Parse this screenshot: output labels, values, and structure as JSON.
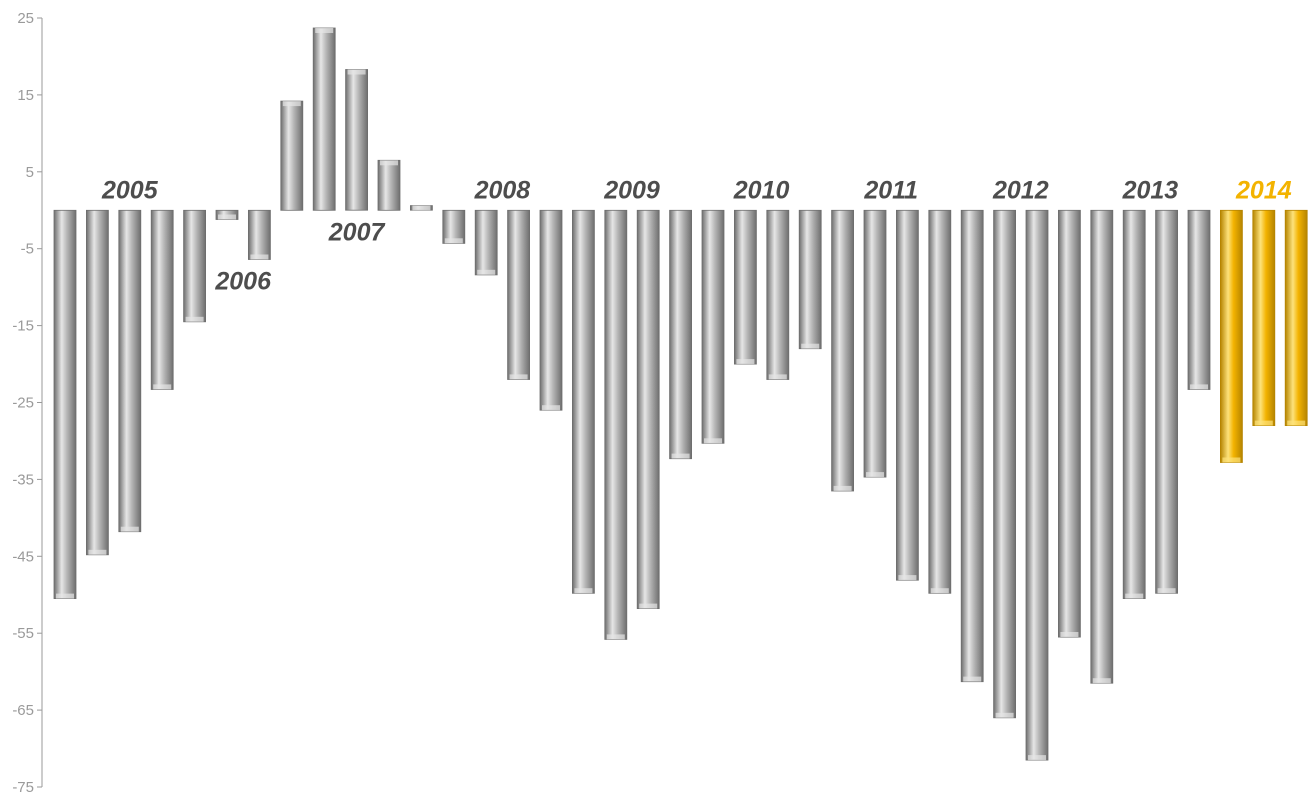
{
  "chart_data": {
    "type": "bar",
    "title": "",
    "xlabel": "",
    "ylabel": "",
    "ylim": [
      -75,
      25
    ],
    "yticks": [
      25,
      15,
      5,
      -5,
      -15,
      -25,
      -35,
      -45,
      -55,
      -65,
      -75
    ],
    "grid": false,
    "legend": "none",
    "year_labels": [
      "2005",
      "2006",
      "2007",
      "2008",
      "2009",
      "2010",
      "2011",
      "2012",
      "2013",
      "2014"
    ],
    "year_label_positions": [
      "above",
      "below",
      "below",
      "above",
      "above",
      "above",
      "above",
      "above",
      "above",
      "above"
    ],
    "highlight_year": "2014",
    "series": [
      {
        "quarters": [
          "2005",
          "2005",
          "2005",
          "2005",
          "2005",
          "2006",
          "2006",
          "2007",
          "2007",
          "2007",
          "2007",
          "2007",
          "2008",
          "2008",
          "2008",
          "2008",
          "2009",
          "2009",
          "2009",
          "2009",
          "2010",
          "2010",
          "2010",
          "2010",
          "2011",
          "2011",
          "2011",
          "2011",
          "2012",
          "2012",
          "2012",
          "2012",
          "2013",
          "2013",
          "2013",
          "2013",
          "2014",
          "2014",
          "2014"
        ],
        "values": [
          -50.5,
          -44.8,
          -41.8,
          -23.3,
          -14.5,
          -1.2,
          -6.4,
          14.2,
          23.7,
          18.3,
          6.5,
          0.6,
          -4.3,
          -8.4,
          -22.0,
          -26.0,
          -49.8,
          -55.8,
          -51.8,
          -32.3,
          -30.3,
          -20.0,
          -22.0,
          -18.0,
          -36.5,
          -34.7,
          -48.1,
          -49.8,
          -61.3,
          -66.0,
          -71.5,
          -55.5,
          -61.5,
          -50.5,
          -49.8,
          -23.3,
          -32.8,
          -28.0,
          -28.0
        ]
      }
    ],
    "colors": {
      "bar": "#b4b4b4",
      "bar_light": "#e6e6e6",
      "bar_dark": "#6e6e6e",
      "highlight": "#f3b300",
      "highlight_light": "#fde27a",
      "highlight_dark": "#b58400",
      "axis": "#9a9a9a",
      "year_text": "#4d4d4d"
    }
  }
}
